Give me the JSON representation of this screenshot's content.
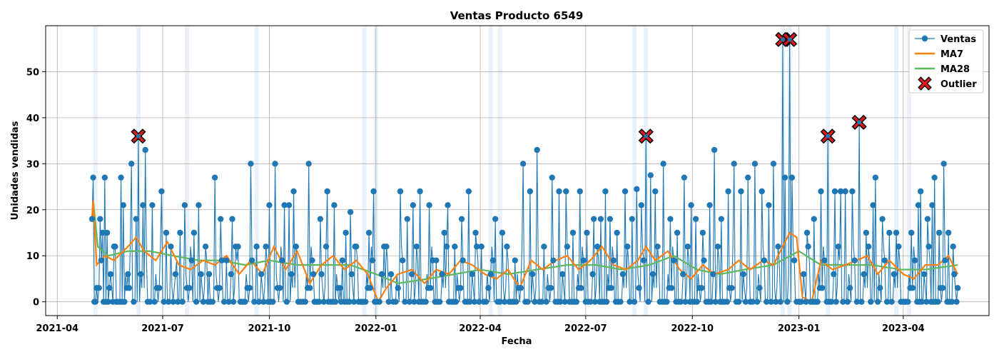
{
  "chart_data": {
    "type": "line",
    "title": "Ventas Producto 6549",
    "xlabel": "Fecha",
    "ylabel": "Unidades vendidas",
    "x_range": [
      "2021-03-22",
      "2023-06-14"
    ],
    "ylim": [
      -3,
      60
    ],
    "grid": true,
    "legend_position": "top-right",
    "x_ticks": [
      {
        "date": "2021-04-01",
        "label": "2021-04"
      },
      {
        "date": "2021-07-01",
        "label": "2021-07"
      },
      {
        "date": "2021-10-01",
        "label": "2021-10"
      },
      {
        "date": "2022-01-01",
        "label": "2022-01"
      },
      {
        "date": "2022-04-01",
        "label": "2022-04"
      },
      {
        "date": "2022-07-01",
        "label": "2022-07"
      },
      {
        "date": "2022-10-01",
        "label": "2022-10"
      },
      {
        "date": "2023-01-01",
        "label": "2023-01"
      },
      {
        "date": "2023-04-01",
        "label": "2023-04"
      }
    ],
    "y_ticks": [
      0,
      10,
      20,
      30,
      40,
      50
    ],
    "start_date": "2021-05-01",
    "end_date": "2023-05-18",
    "colors": {
      "ventas": "#1f77b4",
      "ma7": "#ff7f0e",
      "ma28": "#5cb85c",
      "outlier": "#e31a1c",
      "shade": "#cfe2f3"
    },
    "series": [
      {
        "name": "Ventas",
        "points": [
          [
            "2021-05-01",
            18
          ],
          [
            "2021-05-02",
            27
          ],
          [
            "2021-05-04",
            0
          ],
          [
            "2021-05-08",
            18
          ],
          [
            "2021-05-10",
            15
          ],
          [
            "2021-05-12",
            27
          ],
          [
            "2021-05-14",
            15
          ],
          [
            "2021-05-16",
            3
          ],
          [
            "2021-05-20",
            12
          ],
          [
            "2021-05-22",
            0
          ],
          [
            "2021-05-26",
            27
          ],
          [
            "2021-05-28",
            21
          ],
          [
            "2021-06-01",
            6
          ],
          [
            "2021-06-04",
            30
          ],
          [
            "2021-06-08",
            18
          ],
          [
            "2021-06-10",
            36
          ],
          [
            "2021-06-14",
            21
          ],
          [
            "2021-06-16",
            33
          ],
          [
            "2021-06-20",
            0
          ],
          [
            "2021-06-22",
            21
          ],
          [
            "2021-06-26",
            3
          ],
          [
            "2021-06-30",
            24
          ],
          [
            "2021-07-04",
            15
          ],
          [
            "2021-07-08",
            12
          ],
          [
            "2021-07-12",
            6
          ],
          [
            "2021-07-16",
            15
          ],
          [
            "2021-07-20",
            21
          ],
          [
            "2021-07-24",
            3
          ],
          [
            "2021-07-28",
            15
          ],
          [
            "2021-08-01",
            21
          ],
          [
            "2021-08-05",
            0
          ],
          [
            "2021-08-10",
            6
          ],
          [
            "2021-08-15",
            27
          ],
          [
            "2021-08-20",
            18
          ],
          [
            "2021-08-25",
            9
          ],
          [
            "2021-08-30",
            18
          ],
          [
            "2021-09-04",
            12
          ],
          [
            "2021-09-10",
            0
          ],
          [
            "2021-09-15",
            30
          ],
          [
            "2021-09-20",
            12
          ],
          [
            "2021-09-26",
            0
          ],
          [
            "2021-10-01",
            21
          ],
          [
            "2021-10-06",
            30
          ],
          [
            "2021-10-10",
            3
          ],
          [
            "2021-10-14",
            21
          ],
          [
            "2021-10-18",
            21
          ],
          [
            "2021-10-22",
            24
          ],
          [
            "2021-10-28",
            0
          ],
          [
            "2021-11-04",
            30
          ],
          [
            "2021-11-08",
            6
          ],
          [
            "2021-11-14",
            18
          ],
          [
            "2021-11-20",
            24
          ],
          [
            "2021-11-26",
            21
          ],
          [
            "2021-12-02",
            0
          ],
          [
            "2021-12-06",
            15
          ],
          [
            "2021-12-10",
            19.5
          ],
          [
            "2021-12-14",
            12
          ],
          [
            "2021-12-20",
            0
          ],
          [
            "2021-12-26",
            15
          ],
          [
            "2021-12-30",
            24
          ],
          [
            "2022-01-08",
            12
          ],
          [
            "2022-01-14",
            6
          ],
          [
            "2022-01-22",
            24
          ],
          [
            "2022-01-28",
            18
          ],
          [
            "2022-02-02",
            21
          ],
          [
            "2022-02-08",
            24
          ],
          [
            "2022-02-16",
            21
          ],
          [
            "2022-02-22",
            9
          ],
          [
            "2022-03-01",
            15
          ],
          [
            "2022-03-04",
            21
          ],
          [
            "2022-03-10",
            12
          ],
          [
            "2022-03-16",
            18
          ],
          [
            "2022-03-22",
            24
          ],
          [
            "2022-03-28",
            15
          ],
          [
            "2022-04-02",
            12
          ],
          [
            "2022-04-10",
            6
          ],
          [
            "2022-04-14",
            18
          ],
          [
            "2022-04-20",
            15
          ],
          [
            "2022-05-01",
            9
          ],
          [
            "2022-05-08",
            30
          ],
          [
            "2022-05-14",
            24
          ],
          [
            "2022-05-20",
            33
          ],
          [
            "2022-05-26",
            12
          ],
          [
            "2022-06-02",
            27
          ],
          [
            "2022-06-08",
            24
          ],
          [
            "2022-06-14",
            24
          ],
          [
            "2022-06-20",
            15
          ],
          [
            "2022-06-26",
            24
          ],
          [
            "2022-07-02",
            15
          ],
          [
            "2022-07-08",
            18
          ],
          [
            "2022-07-14",
            18
          ],
          [
            "2022-07-18",
            24
          ],
          [
            "2022-07-22",
            18
          ],
          [
            "2022-07-28",
            15
          ],
          [
            "2022-08-04",
            24
          ],
          [
            "2022-08-10",
            18
          ],
          [
            "2022-08-14",
            24.5
          ],
          [
            "2022-08-18",
            21
          ],
          [
            "2022-08-22",
            36
          ],
          [
            "2022-08-26",
            27.5
          ],
          [
            "2022-08-30",
            24
          ],
          [
            "2022-09-06",
            30
          ],
          [
            "2022-09-12",
            18
          ],
          [
            "2022-09-18",
            15
          ],
          [
            "2022-09-24",
            27
          ],
          [
            "2022-09-30",
            21
          ],
          [
            "2022-10-04",
            18
          ],
          [
            "2022-10-10",
            15
          ],
          [
            "2022-10-16",
            21
          ],
          [
            "2022-10-20",
            33
          ],
          [
            "2022-10-26",
            18
          ],
          [
            "2022-11-01",
            24
          ],
          [
            "2022-11-06",
            30
          ],
          [
            "2022-11-12",
            24
          ],
          [
            "2022-11-18",
            27
          ],
          [
            "2022-11-24",
            30
          ],
          [
            "2022-11-30",
            24
          ],
          [
            "2022-12-06",
            21
          ],
          [
            "2022-12-10",
            30
          ],
          [
            "2022-12-18",
            57
          ],
          [
            "2022-12-20",
            27
          ],
          [
            "2022-12-24",
            57
          ],
          [
            "2022-12-26",
            27
          ],
          [
            "2023-01-02",
            0
          ],
          [
            "2023-01-08",
            15
          ],
          [
            "2023-01-14",
            18
          ],
          [
            "2023-01-20",
            24
          ],
          [
            "2023-01-26",
            36
          ],
          [
            "2023-02-01",
            24
          ],
          [
            "2023-02-06",
            24
          ],
          [
            "2023-02-10",
            24
          ],
          [
            "2023-02-16",
            24
          ],
          [
            "2023-02-22",
            39
          ],
          [
            "2023-02-28",
            15
          ],
          [
            "2023-03-06",
            21
          ],
          [
            "2023-03-08",
            27
          ],
          [
            "2023-03-14",
            18
          ],
          [
            "2023-03-20",
            15
          ],
          [
            "2023-03-26",
            15
          ],
          [
            "2023-04-02",
            0
          ],
          [
            "2023-04-08",
            15
          ],
          [
            "2023-04-14",
            21
          ],
          [
            "2023-04-16",
            24
          ],
          [
            "2023-04-22",
            18
          ],
          [
            "2023-04-26",
            21
          ],
          [
            "2023-04-28",
            27
          ],
          [
            "2023-05-02",
            15
          ],
          [
            "2023-05-06",
            30
          ],
          [
            "2023-05-10",
            15
          ],
          [
            "2023-05-14",
            12
          ],
          [
            "2023-05-18",
            3
          ]
        ]
      },
      {
        "name": "MA7",
        "points": [
          [
            "2021-05-01",
            18
          ],
          [
            "2021-05-02",
            22
          ],
          [
            "2021-05-05",
            8
          ],
          [
            "2021-05-12",
            10
          ],
          [
            "2021-05-20",
            9
          ],
          [
            "2021-06-01",
            12
          ],
          [
            "2021-06-08",
            14
          ],
          [
            "2021-06-15",
            11
          ],
          [
            "2021-06-25",
            9
          ],
          [
            "2021-07-05",
            13
          ],
          [
            "2021-07-15",
            8
          ],
          [
            "2021-07-25",
            7
          ],
          [
            "2021-08-05",
            9
          ],
          [
            "2021-08-15",
            8
          ],
          [
            "2021-08-25",
            10
          ],
          [
            "2021-09-05",
            6
          ],
          [
            "2021-09-15",
            9
          ],
          [
            "2021-09-25",
            6
          ],
          [
            "2021-10-05",
            12
          ],
          [
            "2021-10-15",
            7
          ],
          [
            "2021-10-25",
            11
          ],
          [
            "2021-11-05",
            4
          ],
          [
            "2021-11-15",
            8
          ],
          [
            "2021-11-25",
            10
          ],
          [
            "2021-12-05",
            7
          ],
          [
            "2021-12-15",
            9
          ],
          [
            "2021-12-25",
            6
          ],
          [
            "2022-01-03",
            0
          ],
          [
            "2022-01-10",
            3
          ],
          [
            "2022-01-20",
            6
          ],
          [
            "2022-02-01",
            7
          ],
          [
            "2022-02-12",
            4
          ],
          [
            "2022-02-22",
            7
          ],
          [
            "2022-03-05",
            6
          ],
          [
            "2022-03-15",
            9
          ],
          [
            "2022-03-25",
            8
          ],
          [
            "2022-04-05",
            6
          ],
          [
            "2022-04-15",
            5
          ],
          [
            "2022-04-25",
            7
          ],
          [
            "2022-05-05",
            3
          ],
          [
            "2022-05-15",
            9
          ],
          [
            "2022-05-25",
            7
          ],
          [
            "2022-06-05",
            9
          ],
          [
            "2022-06-15",
            10
          ],
          [
            "2022-06-25",
            7
          ],
          [
            "2022-07-05",
            9
          ],
          [
            "2022-07-15",
            12
          ],
          [
            "2022-07-25",
            8
          ],
          [
            "2022-08-05",
            7
          ],
          [
            "2022-08-15",
            9
          ],
          [
            "2022-08-22",
            12
          ],
          [
            "2022-08-30",
            9
          ],
          [
            "2022-09-10",
            11
          ],
          [
            "2022-09-20",
            7
          ],
          [
            "2022-09-30",
            5
          ],
          [
            "2022-10-10",
            8
          ],
          [
            "2022-10-20",
            6
          ],
          [
            "2022-11-01",
            7
          ],
          [
            "2022-11-10",
            9
          ],
          [
            "2022-11-20",
            7
          ],
          [
            "2022-12-01",
            9
          ],
          [
            "2022-12-10",
            8
          ],
          [
            "2022-12-18",
            12
          ],
          [
            "2022-12-24",
            15
          ],
          [
            "2022-12-30",
            14
          ],
          [
            "2023-01-04",
            1
          ],
          [
            "2023-01-12",
            0
          ],
          [
            "2023-01-20",
            9
          ],
          [
            "2023-01-30",
            7
          ],
          [
            "2023-02-10",
            8
          ],
          [
            "2023-02-20",
            9
          ],
          [
            "2023-03-01",
            10
          ],
          [
            "2023-03-10",
            6
          ],
          [
            "2023-03-20",
            9
          ],
          [
            "2023-04-01",
            6
          ],
          [
            "2023-04-10",
            5
          ],
          [
            "2023-04-20",
            8
          ],
          [
            "2023-05-01",
            8
          ],
          [
            "2023-05-10",
            10
          ],
          [
            "2023-05-18",
            6
          ]
        ]
      },
      {
        "name": "MA28",
        "points": [
          [
            "2021-05-01",
            18
          ],
          [
            "2021-05-02",
            22
          ],
          [
            "2021-05-06",
            12
          ],
          [
            "2021-05-15",
            10
          ],
          [
            "2021-06-01",
            11
          ],
          [
            "2021-06-20",
            11
          ],
          [
            "2021-07-10",
            10
          ],
          [
            "2021-08-01",
            9
          ],
          [
            "2021-08-20",
            9
          ],
          [
            "2021-09-10",
            8
          ],
          [
            "2021-10-01",
            9
          ],
          [
            "2021-10-25",
            8
          ],
          [
            "2021-11-15",
            8
          ],
          [
            "2021-12-10",
            8
          ],
          [
            "2022-01-01",
            6
          ],
          [
            "2022-01-20",
            4
          ],
          [
            "2022-02-15",
            5
          ],
          [
            "2022-03-10",
            6
          ],
          [
            "2022-04-01",
            7
          ],
          [
            "2022-04-25",
            6
          ],
          [
            "2022-05-20",
            7
          ],
          [
            "2022-06-15",
            8
          ],
          [
            "2022-07-10",
            8
          ],
          [
            "2022-08-01",
            7
          ],
          [
            "2022-08-25",
            8
          ],
          [
            "2022-09-15",
            10
          ],
          [
            "2022-10-05",
            7
          ],
          [
            "2022-10-25",
            6
          ],
          [
            "2022-11-15",
            7
          ],
          [
            "2022-12-10",
            8
          ],
          [
            "2023-01-01",
            11
          ],
          [
            "2023-01-20",
            8
          ],
          [
            "2023-02-10",
            8
          ],
          [
            "2023-03-05",
            8
          ],
          [
            "2023-03-30",
            7
          ],
          [
            "2023-04-20",
            7
          ],
          [
            "2023-05-18",
            8
          ]
        ]
      }
    ],
    "outliers": {
      "name": "Outlier",
      "points": [
        [
          "2021-06-10",
          36
        ],
        [
          "2022-08-22",
          36
        ],
        [
          "2022-12-18",
          57
        ],
        [
          "2022-12-24",
          57
        ],
        [
          "2023-01-26",
          36
        ],
        [
          "2023-02-22",
          39
        ]
      ]
    },
    "shaded_dates": [
      "2021-05-04",
      "2021-06-10",
      "2021-07-22",
      "2021-09-20",
      "2021-12-22",
      "2022-01-01",
      "2022-04-10",
      "2022-04-18",
      "2022-08-12",
      "2022-08-22",
      "2022-12-18",
      "2022-12-24",
      "2023-01-26",
      "2023-03-26",
      "2023-04-06"
    ]
  }
}
